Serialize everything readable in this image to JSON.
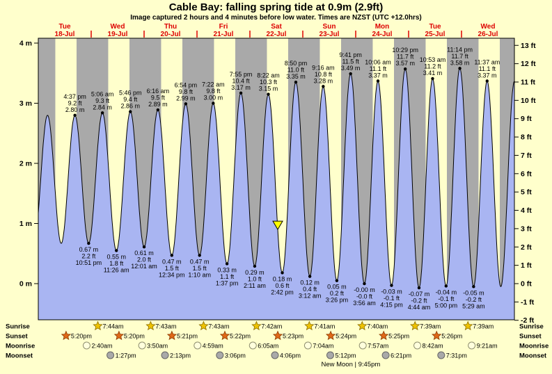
{
  "header": {
    "title": "Cable Bay: falling spring tide at 0.9m (2.9ft)",
    "subtitle": "Image captured 2 hours and 4 minutes before low water. Times are NZST (UTC +12.0hrs)"
  },
  "chart_data": {
    "type": "area",
    "title": "Cable Bay: falling spring tide at 0.9m (2.9ft)",
    "ylabel_left": "m",
    "ylabel_right": "ft",
    "ylim_m": [
      -0.61,
      4.08
    ],
    "grid": false,
    "x_axis": {
      "days": [
        {
          "weekday": "Tue",
          "date": "18-Jul"
        },
        {
          "weekday": "Wed",
          "date": "19-Jul"
        },
        {
          "weekday": "Thu",
          "date": "20-Jul"
        },
        {
          "weekday": "Fri",
          "date": "21-Jul"
        },
        {
          "weekday": "Sat",
          "date": "22-Jul"
        },
        {
          "weekday": "Sun",
          "date": "23-Jul"
        },
        {
          "weekday": "Mon",
          "date": "24-Jul"
        },
        {
          "weekday": "Tue",
          "date": "25-Jul"
        },
        {
          "weekday": "Wed",
          "date": "26-Jul"
        }
      ]
    },
    "y_axis_left": {
      "suffix": " m",
      "ticks": [
        4,
        3,
        2,
        1,
        0
      ]
    },
    "y_axis_right": {
      "suffix": " ft",
      "ticks": [
        13,
        12,
        11,
        10,
        9,
        8,
        7,
        6,
        5,
        4,
        3,
        2,
        1,
        0,
        -1,
        -2
      ]
    },
    "extremes": [
      {
        "kind": "high",
        "day": 0,
        "time": "4:37 pm",
        "ft_label": "9.2 ft",
        "m_label": "2.80 m",
        "m": 2.8
      },
      {
        "kind": "low",
        "day": 0,
        "time": "10:51 pm",
        "ft_label": "2.2 ft",
        "m_label": "0.67 m",
        "m": 0.67
      },
      {
        "kind": "high",
        "day": 1,
        "time": "5:06 am",
        "ft_label": "9.3 ft",
        "m_label": "2.84 m",
        "m": 2.84
      },
      {
        "kind": "low",
        "day": 1,
        "time": "11:26 am",
        "ft_label": "1.8 ft",
        "m_label": "0.55 m",
        "m": 0.55
      },
      {
        "kind": "high",
        "day": 1,
        "time": "5:46 pm",
        "ft_label": "9.4 ft",
        "m_label": "2.86 m",
        "m": 2.86
      },
      {
        "kind": "low",
        "day": 2,
        "time": "12:01 am",
        "ft_label": "2.0 ft",
        "m_label": "0.61 m",
        "m": 0.61
      },
      {
        "kind": "high",
        "day": 2,
        "time": "6:16 am",
        "ft_label": "9.5 ft",
        "m_label": "2.89 m",
        "m": 2.89
      },
      {
        "kind": "low",
        "day": 2,
        "time": "12:34 pm",
        "ft_label": "1.5 ft",
        "m_label": "0.47 m",
        "m": 0.47
      },
      {
        "kind": "high",
        "day": 2,
        "time": "6:54 pm",
        "ft_label": "9.8 ft",
        "m_label": "2.99 m",
        "m": 2.99
      },
      {
        "kind": "low",
        "day": 3,
        "time": "1:10 am",
        "ft_label": "1.5 ft",
        "m_label": "0.47 m",
        "m": 0.47
      },
      {
        "kind": "high",
        "day": 3,
        "time": "7:22 am",
        "ft_label": "9.8 ft",
        "m_label": "3.00 m",
        "m": 3.0
      },
      {
        "kind": "low",
        "day": 3,
        "time": "1:37 pm",
        "ft_label": "1.1 ft",
        "m_label": "0.33 m",
        "m": 0.33
      },
      {
        "kind": "high",
        "day": 3,
        "time": "7:55 pm",
        "ft_label": "10.4 ft",
        "m_label": "3.17 m",
        "m": 3.17
      },
      {
        "kind": "low",
        "day": 4,
        "time": "2:11 am",
        "ft_label": "1.0 ft",
        "m_label": "0.29 m",
        "m": 0.29
      },
      {
        "kind": "high",
        "day": 4,
        "time": "8:22 am",
        "ft_label": "10.3 ft",
        "m_label": "3.15 m",
        "m": 3.15
      },
      {
        "kind": "low",
        "day": 4,
        "time": "2:42 pm",
        "ft_label": "0.6 ft",
        "m_label": "0.18 m",
        "m": 0.18
      },
      {
        "kind": "high",
        "day": 4,
        "time": "8:50 pm",
        "ft_label": "11.0 ft",
        "m_label": "3.35 m",
        "m": 3.35
      },
      {
        "kind": "low",
        "day": 5,
        "time": "3:12 am",
        "ft_label": "0.4 ft",
        "m_label": "0.12 m",
        "m": 0.12
      },
      {
        "kind": "high",
        "day": 5,
        "time": "9:16 am",
        "ft_label": "10.8 ft",
        "m_label": "3.28 m",
        "m": 3.28
      },
      {
        "kind": "low",
        "day": 5,
        "time": "3:26 pm",
        "ft_label": "0.2 ft",
        "m_label": "0.05 m",
        "m": 0.05
      },
      {
        "kind": "high",
        "day": 5,
        "time": "9:41 pm",
        "ft_label": "11.5 ft",
        "m_label": "3.49 m",
        "m": 3.49
      },
      {
        "kind": "low",
        "day": 6,
        "time": "3:56 am",
        "ft_label": "-0.0 ft",
        "m_label": "-0.00 m",
        "m": -0.001
      },
      {
        "kind": "high",
        "day": 6,
        "time": "10:06 am",
        "ft_label": "11.1 ft",
        "m_label": "3.37 m",
        "m": 3.37
      },
      {
        "kind": "low",
        "day": 6,
        "time": "4:15 pm",
        "ft_label": "-0.1 ft",
        "m_label": "-0.03 m",
        "m": -0.03
      },
      {
        "kind": "high",
        "day": 6,
        "time": "10:29 pm",
        "ft_label": "11.7 ft",
        "m_label": "3.57 m",
        "m": 3.57
      },
      {
        "kind": "low",
        "day": 7,
        "time": "4:44 am",
        "ft_label": "-0.2 ft",
        "m_label": "-0.07 m",
        "m": -0.07
      },
      {
        "kind": "high",
        "day": 7,
        "time": "10:53 am",
        "ft_label": "11.2 ft",
        "m_label": "3.41 m",
        "m": 3.41
      },
      {
        "kind": "low",
        "day": 7,
        "time": "5:00 pm",
        "ft_label": "-0.1 ft",
        "m_label": "-0.04 m",
        "m": -0.04
      },
      {
        "kind": "high",
        "day": 7,
        "time": "11:14 pm",
        "ft_label": "11.7 ft",
        "m_label": "3.58 m",
        "m": 3.58
      },
      {
        "kind": "low",
        "day": 8,
        "time": "5:29 am",
        "ft_label": "-0.2 ft",
        "m_label": "-0.05 m",
        "m": -0.05
      },
      {
        "kind": "high",
        "day": 8,
        "time": "11:37 am",
        "ft_label": "11.1 ft",
        "m_label": "3.37 m",
        "m": 3.37
      }
    ],
    "now_marker": {
      "day": 4,
      "time": "12:38 pm",
      "m": 0.9
    },
    "colors": {
      "page_bg": "#ffffcc",
      "day_band": "#ffffcc",
      "night_band": "#a9a9a9",
      "tide_fill": "#a9b5f2",
      "curve_stroke": "#000000",
      "label_red": "#dd0000",
      "marker_yellow": "#ffff00",
      "sunrise_star": "#eec200",
      "sunset_star": "#e06818",
      "moonrise_fill": "#ffffdd",
      "moonset_fill": "#a9a9a9"
    }
  },
  "sun_moon": {
    "rows": [
      {
        "label": "Sunrise",
        "icon": "sunrise-star-icon",
        "events": [
          {
            "day": 1,
            "time": "7:44am"
          },
          {
            "day": 2,
            "time": "7:43am"
          },
          {
            "day": 3,
            "time": "7:43am"
          },
          {
            "day": 4,
            "time": "7:42am"
          },
          {
            "day": 5,
            "time": "7:41am"
          },
          {
            "day": 6,
            "time": "7:40am"
          },
          {
            "day": 7,
            "time": "7:39am"
          },
          {
            "day": 8,
            "time": "7:39am"
          }
        ]
      },
      {
        "label": "Sunset",
        "icon": "sunset-star-icon",
        "events": [
          {
            "day": 0,
            "time": "5:20pm"
          },
          {
            "day": 1,
            "time": "5:20pm"
          },
          {
            "day": 2,
            "time": "5:21pm"
          },
          {
            "day": 3,
            "time": "5:22pm"
          },
          {
            "day": 4,
            "time": "5:23pm"
          },
          {
            "day": 5,
            "time": "5:24pm"
          },
          {
            "day": 6,
            "time": "5:25pm"
          },
          {
            "day": 7,
            "time": "5:26pm"
          }
        ]
      },
      {
        "label": "Moonrise",
        "icon": "moonrise-icon",
        "events": [
          {
            "day": 1,
            "time": "2:40am"
          },
          {
            "day": 2,
            "time": "3:50am"
          },
          {
            "day": 3,
            "time": "4:59am"
          },
          {
            "day": 4,
            "time": "6:05am"
          },
          {
            "day": 5,
            "time": "7:04am"
          },
          {
            "day": 6,
            "time": "7:57am"
          },
          {
            "day": 7,
            "time": "8:42am"
          },
          {
            "day": 8,
            "time": "9:21am"
          }
        ]
      },
      {
        "label": "Moonset",
        "icon": "moonset-icon",
        "events": [
          {
            "day": 1,
            "time": "1:27pm"
          },
          {
            "day": 2,
            "time": "2:13pm"
          },
          {
            "day": 3,
            "time": "3:06pm"
          },
          {
            "day": 4,
            "time": "4:06pm"
          },
          {
            "day": 5,
            "time": "5:12pm"
          },
          {
            "day": 6,
            "time": "6:21pm"
          },
          {
            "day": 7,
            "time": "7:31pm"
          }
        ]
      }
    ],
    "moon_phase": {
      "text": "New Moon | 9:45pm",
      "day": 5,
      "time": "9:45pm"
    }
  }
}
